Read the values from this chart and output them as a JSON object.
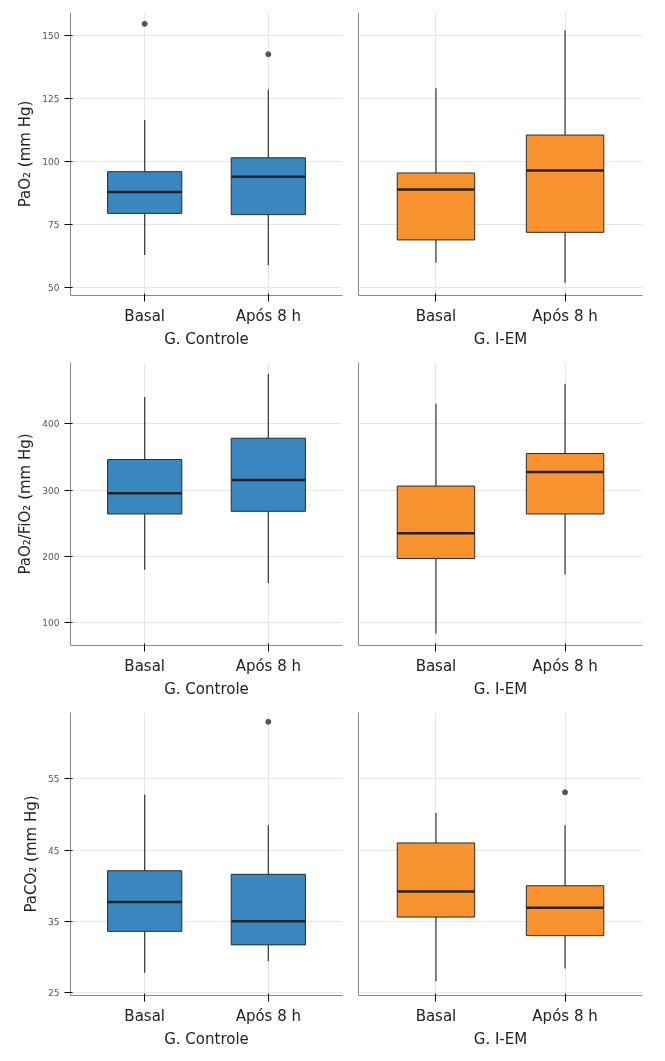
{
  "chart_data": [
    {
      "type": "box",
      "ylabel": "PaO₂ (mm Hg)",
      "xlabel": "G. Controle",
      "categories": [
        "Basal",
        "Após 8 h"
      ],
      "color": "#3a87c0",
      "ylim": [
        47,
        159
      ],
      "yticks": [
        50,
        75,
        100,
        125,
        150
      ],
      "grid": true,
      "boxes": [
        {
          "low": 63,
          "q1": 79.5,
          "median": 88,
          "q3": 96,
          "high": 116.5,
          "outliers": [
            154.5
          ]
        },
        {
          "low": 59,
          "q1": 79,
          "median": 94,
          "q3": 101.5,
          "high": 128.5,
          "outliers": [
            142.5
          ]
        }
      ]
    },
    {
      "type": "box",
      "xlabel": "G. I-EM",
      "categories": [
        "Basal",
        "Após 8 h"
      ],
      "color": "#f8922f",
      "ylim": [
        47,
        159
      ],
      "yticks": [
        50,
        75,
        100,
        125,
        150
      ],
      "grid": true,
      "tick_labels": "x",
      "boxes": [
        {
          "low": 60,
          "q1": 69,
          "median": 89,
          "q3": 95.5,
          "high": 129
        },
        {
          "low": 52,
          "q1": 72,
          "median": 96.5,
          "q3": 110.5,
          "high": 152
        }
      ]
    },
    {
      "type": "box",
      "ylabel": "PaO₂/FiO₂ (mm Hg)",
      "xlabel": "G. Controle",
      "categories": [
        "Basal",
        "Após 8 h"
      ],
      "color": "#3a87c0",
      "ylim": [
        66,
        492
      ],
      "yticks": [
        100,
        200,
        300,
        400
      ],
      "grid": true,
      "boxes": [
        {
          "low": 180,
          "q1": 264,
          "median": 295,
          "q3": 346,
          "high": 440
        },
        {
          "low": 160,
          "q1": 268,
          "median": 315,
          "q3": 378,
          "high": 475
        }
      ]
    },
    {
      "type": "box",
      "xlabel": "G. I-EM",
      "categories": [
        "Basal",
        "Após 8 h"
      ],
      "color": "#f8922f",
      "ylim": [
        66,
        492
      ],
      "yticks": [
        100,
        200,
        300,
        400
      ],
      "grid": true,
      "tick_labels": "x",
      "boxes": [
        {
          "low": 84,
          "q1": 197,
          "median": 235,
          "q3": 306,
          "high": 430
        },
        {
          "low": 173,
          "q1": 264,
          "median": 327,
          "q3": 355,
          "high": 460
        }
      ]
    },
    {
      "type": "box",
      "ylabel": "PaCO₂ (mm Hg)",
      "xlabel": "G. Controle",
      "categories": [
        "Basal",
        "Após 8 h"
      ],
      "color": "#3a87c0",
      "ylim": [
        24.6,
        64.3
      ],
      "yticks": [
        25,
        35,
        45,
        55
      ],
      "grid": true,
      "boxes": [
        {
          "low": 27.8,
          "q1": 33.6,
          "median": 37.7,
          "q3": 42.1,
          "high": 52.8
        },
        {
          "low": 29.4,
          "q1": 31.7,
          "median": 35,
          "q3": 41.6,
          "high": 48.5,
          "outliers": [
            63
          ]
        }
      ]
    },
    {
      "type": "box",
      "xlabel": "G. I-EM",
      "categories": [
        "Basal",
        "Após 8 h"
      ],
      "color": "#f8922f",
      "ylim": [
        24.6,
        64.3
      ],
      "yticks": [
        25,
        35,
        45,
        55
      ],
      "grid": true,
      "tick_labels": "x",
      "boxes": [
        {
          "low": 26.6,
          "q1": 35.6,
          "median": 39.2,
          "q3": 46,
          "high": 50.2
        },
        {
          "low": 28.4,
          "q1": 33,
          "median": 36.9,
          "q3": 40,
          "high": 48.5,
          "outliers": [
            53.1
          ]
        }
      ]
    }
  ]
}
